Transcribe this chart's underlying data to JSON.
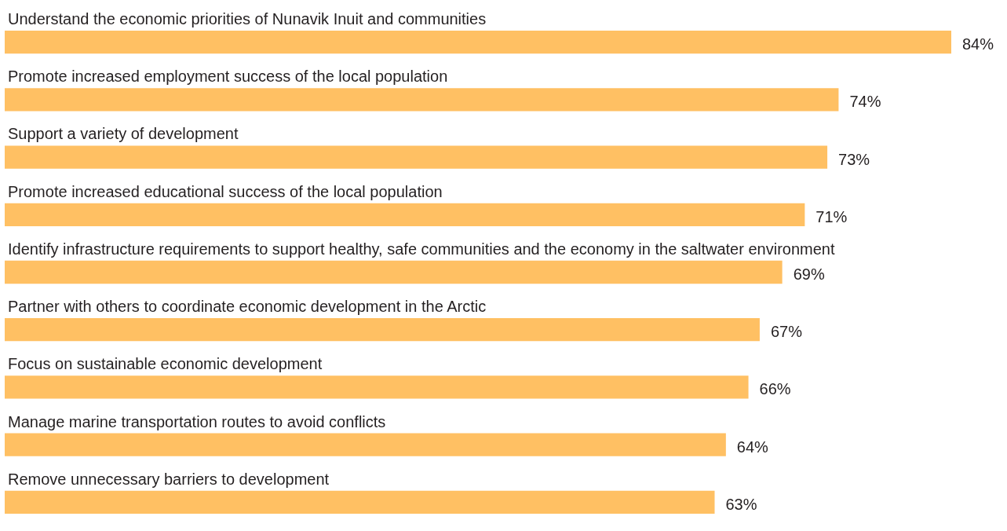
{
  "chart_data": {
    "type": "bar",
    "orientation": "horizontal",
    "categories": [
      "Understand the economic priorities of Nunavik Inuit and communities",
      "Promote increased employment success of the local population",
      "Support a variety of development",
      "Promote increased educational success of the local population",
      "Identify infrastructure requirements to support healthy, safe communities and the economy in the saltwater environment",
      "Partner with others to coordinate economic development in the Arctic",
      "Focus on sustainable economic development",
      "Manage marine transportation routes to avoid conflicts",
      "Remove unnecessary barriers to development"
    ],
    "values": [
      84,
      74,
      73,
      71,
      69,
      67,
      66,
      64,
      63
    ],
    "value_labels": [
      "84%",
      "74%",
      "73%",
      "71%",
      "69%",
      "67%",
      "66%",
      "64%",
      "63%"
    ],
    "color": "#ffc063"
  }
}
